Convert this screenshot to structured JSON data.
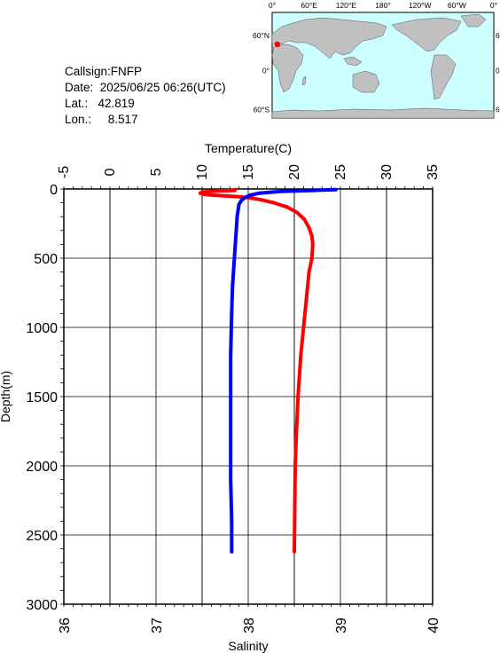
{
  "info": {
    "callsign": "Callsign:FNFP",
    "date": "Date:  2025/06/25 06:26(UTC)",
    "lat": "Lat.:   42.819",
    "lon": "Lon.:     8.517"
  },
  "map": {
    "lon_labels": [
      "0°",
      "60°E",
      "120°E",
      "180°",
      "120°W",
      "60°W",
      "0°"
    ],
    "lat_labels": [
      "60°N",
      "0°",
      "60°S"
    ],
    "ocean_color": "#ccffff",
    "land_color": "#c0c0c0",
    "marker_color": "#ff0000",
    "marker_lon": 8.517,
    "marker_lat": 42.819
  },
  "chart_data": {
    "type": "line",
    "title": "",
    "ylabel": "Depth(m)",
    "ylim": [
      0,
      3000
    ],
    "y_ticks": [
      "0",
      "500",
      "1000",
      "1500",
      "2000",
      "2500",
      "3000"
    ],
    "top_axis": {
      "label": "Temperature(C)",
      "lim": [
        -5,
        35
      ],
      "ticks": [
        "-5",
        "0",
        "5",
        "10",
        "15",
        "20",
        "25",
        "30",
        "35"
      ]
    },
    "bottom_axis": {
      "label": "Salinity",
      "lim": [
        36,
        40
      ],
      "ticks": [
        "36",
        "37",
        "38",
        "39",
        "40"
      ]
    },
    "grid": true,
    "series": [
      {
        "color": "#ff0000",
        "axis": "top",
        "points": [
          [
            13.6,
            5
          ],
          [
            13.5,
            10
          ],
          [
            11.5,
            15
          ],
          [
            10.0,
            22
          ],
          [
            9.8,
            30
          ],
          [
            10.2,
            38
          ],
          [
            11.0,
            44
          ],
          [
            12.5,
            50
          ],
          [
            14.0,
            56
          ],
          [
            15.2,
            64
          ],
          [
            16.4,
            78
          ],
          [
            17.8,
            100
          ],
          [
            19.2,
            130
          ],
          [
            20.3,
            170
          ],
          [
            21.1,
            220
          ],
          [
            21.6,
            280
          ],
          [
            21.9,
            340
          ],
          [
            22.0,
            400
          ],
          [
            21.9,
            500
          ],
          [
            21.6,
            600
          ],
          [
            21.3,
            800
          ],
          [
            21.0,
            1000
          ],
          [
            20.7,
            1200
          ],
          [
            20.4,
            1500
          ],
          [
            20.2,
            1800
          ],
          [
            20.1,
            2000
          ],
          [
            20.05,
            2300
          ],
          [
            20.0,
            2620
          ]
        ]
      },
      {
        "color": "#0000ff",
        "axis": "bottom",
        "points": [
          [
            38.95,
            5
          ],
          [
            38.7,
            10
          ],
          [
            38.35,
            18
          ],
          [
            38.12,
            30
          ],
          [
            38.02,
            45
          ],
          [
            37.97,
            60
          ],
          [
            37.93,
            80
          ],
          [
            37.9,
            110
          ],
          [
            37.88,
            200
          ],
          [
            37.87,
            300
          ],
          [
            37.86,
            400
          ],
          [
            37.85,
            500
          ],
          [
            37.83,
            700
          ],
          [
            37.82,
            900
          ],
          [
            37.81,
            1200
          ],
          [
            37.81,
            1500
          ],
          [
            37.81,
            1800
          ],
          [
            37.81,
            2100
          ],
          [
            37.82,
            2400
          ],
          [
            37.82,
            2620
          ]
        ]
      }
    ]
  }
}
